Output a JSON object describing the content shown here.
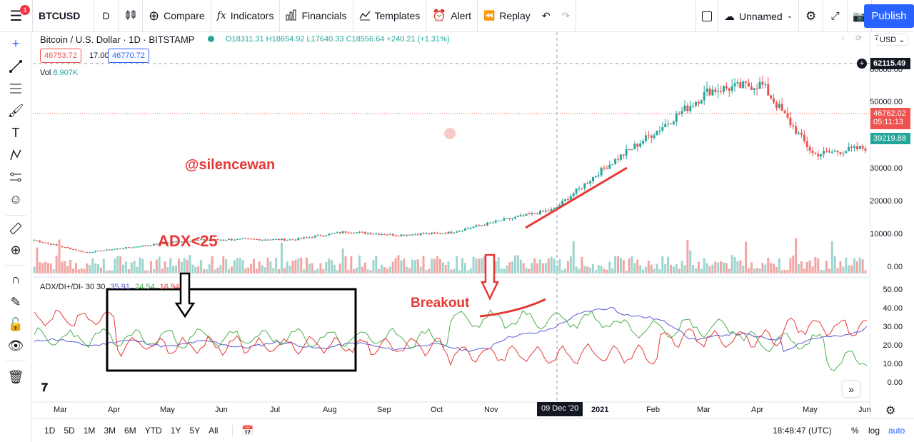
{
  "topbar": {
    "badge": "1",
    "symbol": "BTCUSD",
    "interval": "D",
    "compare": "Compare",
    "indicators": "Indicators",
    "financials": "Financials",
    "templates": "Templates",
    "alert": "Alert",
    "replay": "Replay",
    "layout_name": "Unnamed",
    "publish": "Publish"
  },
  "legend": {
    "title": "Bitcoin / U.S. Dollar · 1D · BITSTAMP",
    "ohlc": "O18311.31  H18654.92  L17640.33  C18556.64  +240.21 (+1.31%)",
    "sell_price": "46753.72",
    "spread": "17.00",
    "buy_price": "46770.72",
    "vol_label": "Vol",
    "vol_value": "8.907K",
    "adx_label": "ADX/DI+/DI- 30 30",
    "adx_value": "35.91",
    "di_plus_value": "24.54",
    "di_minus_value": "16.94"
  },
  "price_axis": {
    "currency": "USD",
    "ticks": [
      "60000.00",
      "50000.00",
      "40000.00",
      "30000.00",
      "20000.00",
      "10000.00",
      "0.00"
    ],
    "crosshair_price": "62115.49",
    "last_price": "46762.02",
    "countdown": "05:11:13",
    "marker_price": "39219.88",
    "top_tick": "7"
  },
  "adx_axis": {
    "ticks": [
      "50.00",
      "40.00",
      "30.00",
      "20.00",
      "10.00",
      "0.00"
    ]
  },
  "time_axis": {
    "ticks": [
      "Mar",
      "Apr",
      "May",
      "Jun",
      "Jul",
      "Aug",
      "Sep",
      "Oct",
      "Nov",
      "2021",
      "Feb",
      "Mar",
      "Apr",
      "May",
      "Jun"
    ],
    "crosshair_date": "09 Dec '20"
  },
  "annotations": {
    "watermark": "@silencewan",
    "adx_note": "ADX<25",
    "breakout": "Breakout"
  },
  "bottombar": {
    "ranges": [
      "1D",
      "5D",
      "1M",
      "3M",
      "6M",
      "YTD",
      "1Y",
      "5Y",
      "All"
    ],
    "clock": "18:48:47 (UTC)",
    "percent": "%",
    "log": "log",
    "auto": "auto"
  },
  "colors": {
    "up": "#26a69a",
    "down": "#ef5350",
    "adx": "#5b5bd6",
    "di_plus": "#4caf50",
    "di_minus": "#e53935",
    "accent": "#2962ff"
  },
  "chart_data": {
    "type": "candlestick",
    "price_series_approx_close": [
      {
        "x": "Mar 2020",
        "y": 9000
      },
      {
        "x": "Mar 2020",
        "y": 5000
      },
      {
        "x": "Apr 2020",
        "y": 7000
      },
      {
        "x": "May 2020",
        "y": 9000
      },
      {
        "x": "Jun 2020",
        "y": 9300
      },
      {
        "x": "Jul 2020",
        "y": 9200
      },
      {
        "x": "Aug 2020",
        "y": 11800
      },
      {
        "x": "Sep 2020",
        "y": 10700
      },
      {
        "x": "Oct 2020",
        "y": 11500
      },
      {
        "x": "Nov 2020",
        "y": 15500
      },
      {
        "x": "Dec 2020",
        "y": 19000
      },
      {
        "x": "Jan 2021",
        "y": 33000
      },
      {
        "x": "Feb 2021",
        "y": 45000
      },
      {
        "x": "Mar 2021",
        "y": 58000
      },
      {
        "x": "Apr 2021",
        "y": 60000
      },
      {
        "x": "May 2021",
        "y": 37000
      },
      {
        "x": "Jun 2021",
        "y": 39219.88
      }
    ],
    "ylim": [
      0,
      70000
    ]
  }
}
